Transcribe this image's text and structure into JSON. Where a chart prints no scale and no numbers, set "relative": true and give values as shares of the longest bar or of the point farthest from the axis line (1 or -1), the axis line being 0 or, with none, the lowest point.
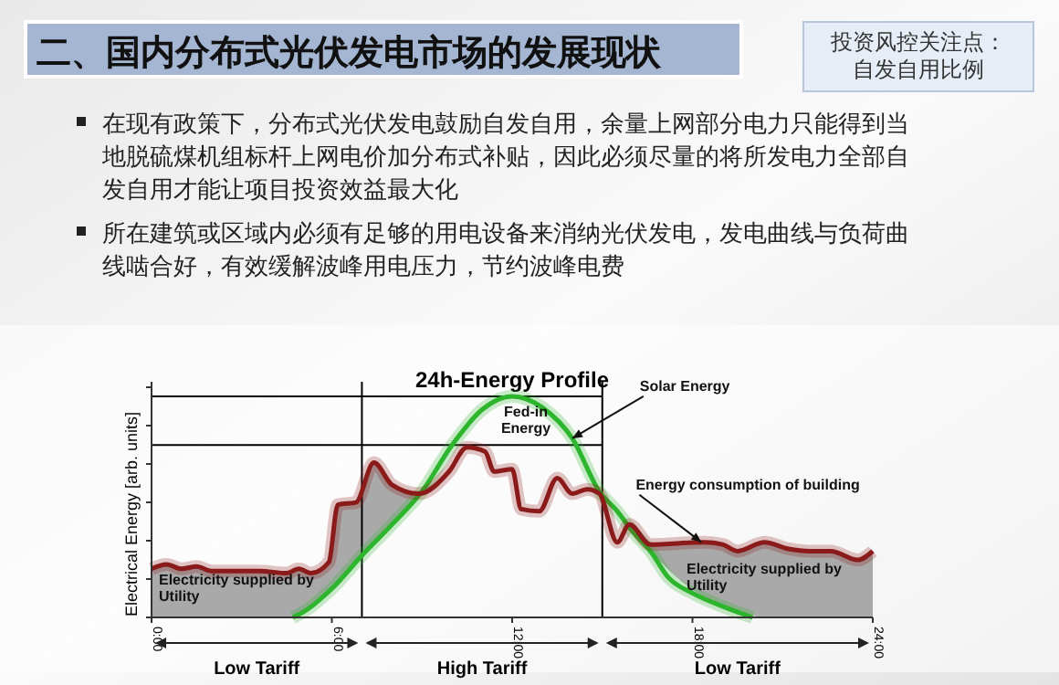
{
  "chart_data": {
    "type": "line",
    "title": "二、国内分布式光伏发电市场的发展现状",
    "subtitle": "24h-Energy Profile",
    "ylabel": "Electrical Energy [arb. units]",
    "relative": true,
    "xlim": [
      0,
      24
    ],
    "xticks": [
      {
        "value": 0,
        "label": "0:00"
      },
      {
        "value": 6,
        "label": "6:00"
      },
      {
        "value": 12,
        "label": "12:00"
      },
      {
        "value": 18,
        "label": "18:00"
      },
      {
        "value": 24,
        "label": "24:00"
      }
    ],
    "series": [
      {
        "color": "#2db52d",
        "x": [
          4.7,
          5,
          6,
          7,
          8,
          9,
          10,
          11,
          12,
          13,
          14,
          14.9,
          15.5,
          16,
          16.6,
          17.2,
          18,
          19,
          20
        ],
        "values": [
          0,
          0.02,
          0.13,
          0.28,
          0.42,
          0.57,
          0.78,
          0.94,
          1,
          0.95,
          0.81,
          0.57,
          0.48,
          0.39,
          0.3,
          0.18,
          0.11,
          0.05,
          0
        ]
      },
      {
        "color": "#8b1a1a",
        "x": [
          0,
          0.5,
          1,
          1.5,
          2,
          3,
          3.6,
          4.5,
          4.9,
          5.3,
          5.9,
          6.2,
          6.8,
          7.4,
          8,
          8.9,
          9.9,
          10.5,
          11.1,
          11.4,
          12,
          12.3,
          12.9,
          13.5,
          14,
          14.5,
          14.9,
          15.5,
          15.9,
          16.6,
          18.4,
          19,
          19.5,
          20.4,
          21.2,
          21.9,
          22.6,
          23.5,
          24
        ],
        "values": [
          0.22,
          0.24,
          0.22,
          0.23,
          0.21,
          0.21,
          0.21,
          0.2,
          0.22,
          0.2,
          0.25,
          0.51,
          0.52,
          0.7,
          0.6,
          0.56,
          0.66,
          0.77,
          0.75,
          0.66,
          0.67,
          0.49,
          0.48,
          0.63,
          0.56,
          0.58,
          0.56,
          0.34,
          0.42,
          0.33,
          0.34,
          0.33,
          0.3,
          0.34,
          0.31,
          0.3,
          0.3,
          0.26,
          0.3
        ],
        "lower": [
          0,
          0,
          0,
          0,
          0,
          0,
          0,
          0,
          0.01,
          0.05,
          0.12,
          0.16,
          0.25,
          0.34,
          0.42,
          0.56,
          0.66,
          0.77,
          0.75,
          0.66,
          0.67,
          0.49,
          0.48,
          0.63,
          0.56,
          0.58,
          0.56,
          0.34,
          0.41,
          0.3,
          0.09,
          0.05,
          0.03,
          0,
          0,
          0,
          0,
          0,
          0
        ],
        "upper": [
          0.22,
          0.24,
          0.22,
          0.23,
          0.21,
          0.21,
          0.21,
          0.2,
          0.22,
          0.2,
          0.25,
          0.51,
          0.52,
          0.7,
          0.6,
          0.56,
          0.66,
          0.77,
          0.75,
          0.66,
          0.67,
          0.49,
          0.48,
          0.63,
          0.56,
          0.58,
          0.56,
          0.34,
          0.42,
          0.33,
          0.34,
          0.33,
          0.3,
          0.34,
          0.31,
          0.3,
          0.3,
          0.26,
          0.3
        ]
      }
    ],
    "ref_lines": [
      {
        "axis": "y",
        "value": 1,
        "color": "#000000"
      },
      {
        "axis": "y",
        "value": 0.78,
        "color": "#000000"
      },
      {
        "axis": "x",
        "value": 7,
        "color": "#000000"
      },
      {
        "axis": "x",
        "value": 15,
        "color": "#000000"
      }
    ],
    "annotations": [
      "投资风控关注点：自发自用比例",
      "在现有政策下，分布式光伏发电鼓励自发自用，余量上网部分电力只能得到当地脱硫煤机组标杆上网电价加分布式补贴，因此必须尽量的将所发电力全部自发自用才能让项目投资效益最大化",
      "所在建筑或区域内必须有足够的用电设备来消纳光伏发电，发电曲线与负荷曲线啮合好，有效缓解波峰用电压力，节约波峰电费",
      "Fed-in\nEnergy",
      {
        "text": "Solar Energy",
        "x": 14,
        "y": 0.81
      },
      {
        "text": "Energy consumption of building",
        "x": 18.3,
        "y": 0.34
      },
      "Electricity supplied by\nUtility",
      "Electricity supplied by\nUtility",
      "Low Tariff",
      "High Tariff",
      "Low Tariff"
    ],
    "grid": false,
    "marker": "none",
    "line_style": "solid"
  }
}
